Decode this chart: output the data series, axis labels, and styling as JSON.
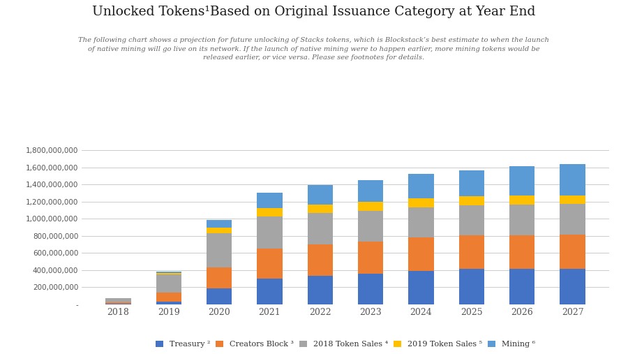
{
  "title": "Unlocked Tokens¹Based on Original Issuance Category at Year End",
  "subtitle": "The following chart shows a projection for future unlocking of Stacks tokens, which is Blockstack’s best estimate to when the launch\nof native mining will go live on its network. If the launch of native mining were to happen earlier, more mining tokens would be\nreleased earlier, or vice versa. Please see footnotes for details.",
  "years": [
    2018,
    2019,
    2020,
    2021,
    2022,
    2023,
    2024,
    2025,
    2026,
    2027
  ],
  "treasury": [
    10000000,
    30000000,
    190000000,
    305000000,
    335000000,
    360000000,
    395000000,
    415000000,
    415000000,
    415000000
  ],
  "creators_block": [
    15000000,
    110000000,
    245000000,
    350000000,
    365000000,
    375000000,
    385000000,
    390000000,
    395000000,
    400000000
  ],
  "token_sales_2018": [
    50000000,
    210000000,
    400000000,
    375000000,
    365000000,
    360000000,
    355000000,
    355000000,
    355000000,
    355000000
  ],
  "token_sales_2019": [
    0,
    20000000,
    60000000,
    95000000,
    100000000,
    100000000,
    105000000,
    105000000,
    105000000,
    105000000
  ],
  "mining": [
    0,
    10000000,
    95000000,
    175000000,
    225000000,
    255000000,
    280000000,
    300000000,
    345000000,
    365000000
  ],
  "colors": {
    "treasury": "#4472C4",
    "creators_block": "#ED7D31",
    "token_sales_2018": "#A5A5A5",
    "token_sales_2019": "#FFC000",
    "mining": "#5B9BD5"
  },
  "legend_labels": [
    "Treasury ²",
    "Creators Block ³",
    "2018 Token Sales ⁴",
    "2019 Token Sales ⁵",
    "Mining ⁶"
  ],
  "ylim": [
    0,
    1900000000
  ],
  "yticks": [
    0,
    200000000,
    400000000,
    600000000,
    800000000,
    1000000000,
    1200000000,
    1400000000,
    1600000000,
    1800000000
  ],
  "background_color": "#FFFFFF",
  "grid_color": "#CCCCCC"
}
